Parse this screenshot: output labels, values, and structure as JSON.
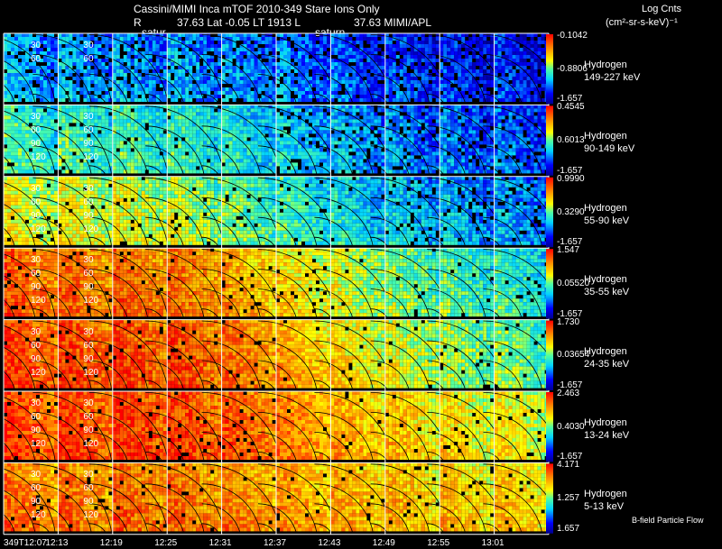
{
  "header": {
    "line1": "Cassini/MIMI Inca mTOF  2010-349    Stare    Ions Only",
    "line2_left": "R",
    "line2_mid": "37.63 Lat -0.05 LT 1913 L",
    "line2_right": "37.63  MIMI/APL",
    "saturn_label_1": "satur",
    "saturn_label_2": "saturn",
    "units_title": "Log Cnts",
    "units": "(cm²-sr-s-keV)⁻¹"
  },
  "footer": {
    "bfield": "B-field Particle Flow"
  },
  "chart_data": {
    "type": "heatmap",
    "title": "Cassini/MIMI Inca mTOF 2010-349 Stare Ions Only",
    "x_times": [
      "349T12:07",
      "12:13",
      "12:19",
      "12:25",
      "12:31",
      "12:37",
      "12:43",
      "12:49",
      "12:55",
      "13:01"
    ],
    "contour_labels": [
      "30",
      "60",
      "90",
      "120"
    ],
    "colors": {
      "low": "#0000cc",
      "mid": "#ffff00",
      "high": "#ff0000"
    },
    "rows": [
      {
        "species": "Hydrogen",
        "energy": "149-227 keV",
        "cb_max": "-0.1042",
        "cb_mid": "-0.8806",
        "cb_min": "-1.657",
        "level": [
          0.28,
          0.27,
          0.26,
          0.26,
          0.24,
          0.22,
          0.18,
          0.16,
          0.14,
          0.13
        ]
      },
      {
        "species": "Hydrogen",
        "energy": "90-149 keV",
        "cb_max": "0.4545",
        "cb_mid": "0.6013",
        "cb_min": "-1.657",
        "level": [
          0.42,
          0.42,
          0.42,
          0.4,
          0.36,
          0.32,
          0.28,
          0.24,
          0.22,
          0.2
        ]
      },
      {
        "species": "Hydrogen",
        "energy": "55-90 keV",
        "cb_max": "0.9990",
        "cb_mid": "0.3290",
        "cb_min": "-1.657",
        "level": [
          0.58,
          0.58,
          0.56,
          0.52,
          0.46,
          0.4,
          0.35,
          0.31,
          0.28,
          0.26
        ]
      },
      {
        "species": "Hydrogen",
        "energy": "35-55 keV",
        "cb_max": "1.547",
        "cb_mid": "0.05520",
        "cb_min": "-1.657",
        "level": [
          0.82,
          0.8,
          0.8,
          0.78,
          0.7,
          0.62,
          0.55,
          0.48,
          0.43,
          0.4
        ]
      },
      {
        "species": "Hydrogen",
        "energy": "24-35 keV",
        "cb_max": "1.730",
        "cb_mid": "0.03654",
        "cb_min": "-1.657",
        "level": [
          0.86,
          0.85,
          0.85,
          0.84,
          0.78,
          0.7,
          0.62,
          0.56,
          0.5,
          0.47
        ]
      },
      {
        "species": "Hydrogen",
        "energy": "13-24 keV",
        "cb_max": "2.463",
        "cb_mid": "0.4030",
        "cb_min": "-1.657",
        "level": [
          0.86,
          0.86,
          0.88,
          0.86,
          0.82,
          0.76,
          0.7,
          0.66,
          0.62,
          0.6
        ]
      },
      {
        "species": "Hydrogen",
        "energy": "5-13 keV",
        "cb_max": "4.171",
        "cb_mid": "1.257",
        "cb_min": "1.657",
        "level": [
          0.78,
          0.78,
          0.8,
          0.78,
          0.76,
          0.72,
          0.7,
          0.68,
          0.66,
          0.66
        ]
      }
    ]
  }
}
